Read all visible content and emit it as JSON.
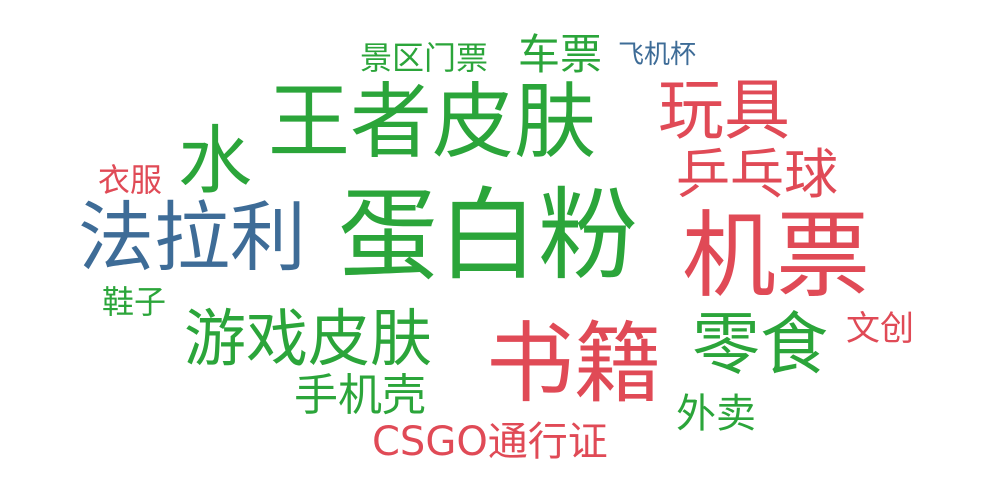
{
  "colors": {
    "green": "#2ba53a",
    "red": "#e04a56",
    "blue": "#3e6c97"
  },
  "words": [
    {
      "text": "王者皮肤",
      "color": "#2ba53a"
    },
    {
      "text": "蛋白粉",
      "color": "#2ba53a"
    },
    {
      "text": "机票",
      "color": "#e04a56"
    },
    {
      "text": "书籍",
      "color": "#e04a56"
    },
    {
      "text": "法拉利",
      "color": "#3e6c97"
    },
    {
      "text": "水",
      "color": "#2ba53a"
    },
    {
      "text": "玩具",
      "color": "#e04a56"
    },
    {
      "text": "游戏皮肤",
      "color": "#2ba53a"
    },
    {
      "text": "零食",
      "color": "#2ba53a"
    },
    {
      "text": "乒乓球",
      "color": "#e04a56"
    },
    {
      "text": "车票",
      "color": "#2ba53a"
    },
    {
      "text": "CSGO通行证",
      "color": "#e04a56"
    },
    {
      "text": "手机壳",
      "color": "#2ba53a"
    },
    {
      "text": "景区门票",
      "color": "#2ba53a"
    },
    {
      "text": "外卖",
      "color": "#2ba53a"
    },
    {
      "text": "文创",
      "color": "#e04a56"
    },
    {
      "text": "衣服",
      "color": "#e04a56"
    },
    {
      "text": "鞋子",
      "color": "#2ba53a"
    },
    {
      "text": "飞机杯",
      "color": "#3e6c97"
    }
  ]
}
